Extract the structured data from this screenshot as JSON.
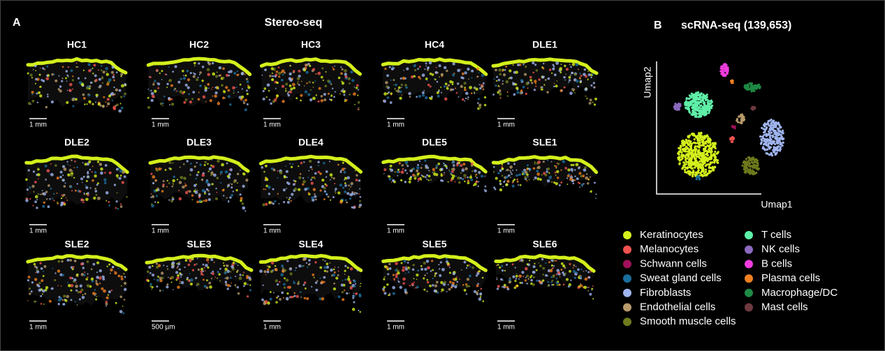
{
  "panel_a": {
    "letter": "A",
    "title": "Stereo-seq",
    "samples": [
      {
        "name": "HC1",
        "scale": "1 mm"
      },
      {
        "name": "HC2",
        "scale": "1 mm"
      },
      {
        "name": "HC3",
        "scale": "1 mm"
      },
      {
        "name": "HC4",
        "scale": "1 mm"
      },
      {
        "name": "DLE1",
        "scale": "1 mm"
      },
      {
        "name": "DLE2",
        "scale": "1 mm"
      },
      {
        "name": "DLE3",
        "scale": "1 mm"
      },
      {
        "name": "DLE4",
        "scale": "1 mm"
      },
      {
        "name": "DLE5",
        "scale": "1 mm"
      },
      {
        "name": "SLE1",
        "scale": "1 mm"
      },
      {
        "name": "SLE2",
        "scale": "1 mm"
      },
      {
        "name": "SLE3",
        "scale": "500 µm"
      },
      {
        "name": "SLE4",
        "scale": "1 mm"
      },
      {
        "name": "SLE5",
        "scale": "1 mm"
      },
      {
        "name": "SLE6",
        "scale": "1 mm"
      }
    ]
  },
  "panel_b": {
    "letter": "B",
    "title": "scRNA-seq (139,653)",
    "x_label": "Umap1",
    "y_label": "Umap2",
    "legend": [
      {
        "name": "Keratinocytes",
        "color": "#d4f01c"
      },
      {
        "name": "Melanocytes",
        "color": "#f0524f"
      },
      {
        "name": "Schwann cells",
        "color": "#a0105a"
      },
      {
        "name": "Sweat gland cells",
        "color": "#1a6e9c"
      },
      {
        "name": "Fibroblasts",
        "color": "#9fb4ee"
      },
      {
        "name": "Endothelial cells",
        "color": "#b89a6a"
      },
      {
        "name": "Smooth muscle cells",
        "color": "#6e7a1c"
      },
      {
        "name": "T cells",
        "color": "#5ff0a8"
      },
      {
        "name": "NK cells",
        "color": "#8c6abf"
      },
      {
        "name": "B cells",
        "color": "#f03cde"
      },
      {
        "name": "Plasma cells",
        "color": "#f08020"
      },
      {
        "name": "Macrophage/DC",
        "color": "#1e8a44"
      },
      {
        "name": "Mast cells",
        "color": "#6e3a40"
      }
    ]
  }
}
